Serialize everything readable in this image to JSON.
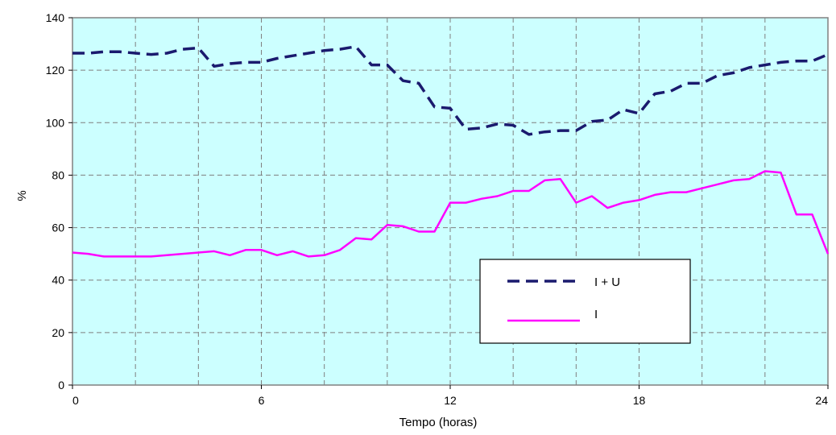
{
  "chart_data": {
    "type": "line",
    "xlabel": "Tempo (horas)",
    "ylabel": "%",
    "xlim": [
      0,
      24
    ],
    "ylim": [
      0,
      140
    ],
    "x_ticks": [
      0,
      6,
      12,
      18,
      24
    ],
    "x_tick_labels": [
      "0",
      "6",
      "12",
      "18",
      "24"
    ],
    "y_ticks": [
      0,
      20,
      40,
      60,
      80,
      100,
      120,
      140
    ],
    "y_tick_labels": [
      "0",
      "20",
      "40",
      "60",
      "80",
      "100",
      "120",
      "140"
    ],
    "grid": true,
    "legend_position": "lower-right",
    "plot_background": "#ccffff",
    "series": [
      {
        "name": "I + U",
        "color": "#1a1a6e",
        "style": "dashed",
        "x": [
          0,
          0.5,
          1,
          1.5,
          2,
          2.5,
          3,
          3.5,
          4,
          4.5,
          5,
          5.5,
          6,
          6.5,
          7,
          7.5,
          8,
          8.5,
          9,
          9.5,
          10,
          10.5,
          11,
          11.5,
          12,
          12.5,
          13,
          13.5,
          14,
          14.5,
          15,
          15.5,
          16,
          16.5,
          17,
          17.5,
          18,
          18.5,
          19,
          19.5,
          20,
          20.5,
          21,
          21.5,
          22,
          22.5,
          23,
          23.5,
          24
        ],
        "values": [
          126.5,
          126.5,
          127,
          127,
          126.5,
          126,
          126.5,
          128,
          128.5,
          121.5,
          122.5,
          123,
          123,
          124.5,
          125.5,
          126.5,
          127.5,
          128,
          129,
          122,
          122,
          116,
          115,
          106,
          105.5,
          97.5,
          98,
          99.5,
          99,
          95.5,
          96.5,
          97,
          97,
          100.5,
          101,
          105,
          103.5,
          111,
          112,
          115,
          115,
          118,
          119,
          121,
          122,
          123,
          123.5,
          123.5,
          126
        ]
      },
      {
        "name": "I",
        "color": "#ff00ff",
        "style": "solid",
        "x": [
          0,
          0.5,
          1,
          1.5,
          2,
          2.5,
          3,
          3.5,
          4,
          4.5,
          5,
          5.5,
          6,
          6.5,
          7,
          7.5,
          8,
          8.5,
          9,
          9.5,
          10,
          10.5,
          11,
          11.5,
          12,
          12.5,
          13,
          13.5,
          14,
          14.5,
          15,
          15.5,
          16,
          16.5,
          17,
          17.5,
          18,
          18.5,
          19,
          19.5,
          20,
          20.5,
          21,
          21.5,
          22,
          22.5,
          23,
          23.5,
          24
        ],
        "values": [
          50.5,
          50,
          49,
          49,
          49,
          49,
          49.5,
          50,
          50.5,
          51,
          49.5,
          51.5,
          51.5,
          49.5,
          51,
          49,
          49.5,
          51.5,
          56,
          55.5,
          61,
          60.5,
          58.5,
          58.5,
          69.5,
          69.5,
          71,
          72,
          74,
          74,
          78,
          78.5,
          69.5,
          72,
          67.5,
          69.5,
          70.5,
          72.5,
          73.5,
          73.5,
          75,
          76.5,
          78,
          78.5,
          81.5,
          81,
          65,
          65,
          50
        ]
      }
    ]
  }
}
